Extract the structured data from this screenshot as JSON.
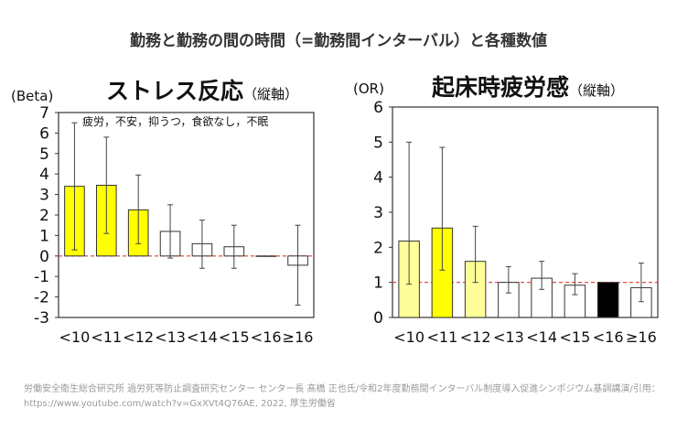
{
  "main_title": "勤務と勤務の間の時間（=勤務間インターバル）と各種数値",
  "footer": {
    "line1": "労働安全衛生総合研究所 過労死等防止調査研究センター センター長 髙橋 正也氏/令和2年度勤務間インターバル制度導入促進シンポジウム基調講演/引用：",
    "line2": "https://www.youtube.com/watch?v=GxXVt4Q76AE, 2022, 厚生労働省"
  },
  "chart_data": [
    {
      "type": "bar",
      "title": "ストレス反応",
      "title_note": "（縦軸）",
      "ylabel": "(Beta)",
      "annotation": "疲労，不安，抑うつ，食欲なし，不眠",
      "categories": [
        "<10",
        "<11",
        "<12",
        "<13",
        "<14",
        "<15",
        "<16",
        "≥16"
      ],
      "values": [
        3.4,
        3.45,
        2.25,
        1.2,
        0.6,
        0.45,
        0,
        -0.45
      ],
      "error_low": [
        0.3,
        1.1,
        0.6,
        -0.1,
        -0.6,
        -0.6,
        0,
        -2.4
      ],
      "error_high": [
        6.5,
        5.8,
        3.95,
        2.5,
        1.75,
        1.5,
        0,
        1.5
      ],
      "fill_colors": [
        "#ffff00",
        "#ffff00",
        "#ffff00",
        "#ffffff",
        "#ffffff",
        "#ffffff",
        "#000000",
        "#ffffff"
      ],
      "reference_line": 0,
      "reference_color": "#e83828",
      "ylim": [
        -3,
        7
      ],
      "yticks": [
        -3,
        -2,
        -1,
        0,
        1,
        2,
        3,
        4,
        5,
        6,
        7
      ]
    },
    {
      "type": "bar",
      "title": "起床時疲労感",
      "title_note": "（縦軸）",
      "ylabel": "(OR)",
      "categories": [
        "<10",
        "<11",
        "<12",
        "<13",
        "<14",
        "<15",
        "<16",
        "≥16"
      ],
      "values": [
        2.18,
        2.55,
        1.6,
        1.0,
        1.12,
        0.92,
        1.0,
        0.85
      ],
      "error_low": [
        0.95,
        1.35,
        1.0,
        0.7,
        0.8,
        0.65,
        1.0,
        0.45
      ],
      "error_high": [
        5.0,
        4.85,
        2.6,
        1.45,
        1.6,
        1.25,
        1.0,
        1.55
      ],
      "fill_colors": [
        "#ffff99",
        "#ffff00",
        "#ffff99",
        "#ffffff",
        "#ffffff",
        "#ffffff",
        "#000000",
        "#ffffff"
      ],
      "reference_line": 1,
      "reference_color": "#e83828",
      "ylim": [
        0,
        6
      ],
      "yticks": [
        0,
        1,
        2,
        3,
        4,
        5,
        6
      ]
    }
  ]
}
